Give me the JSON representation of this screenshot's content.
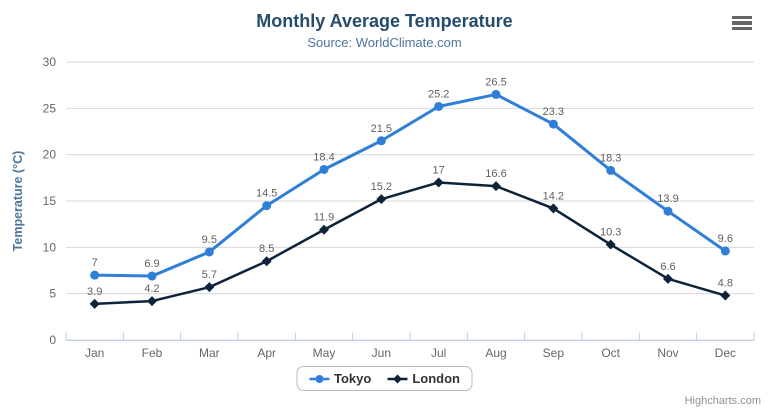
{
  "header": {
    "title": "Monthly Average Temperature",
    "subtitle": "Source: WorldClimate.com"
  },
  "credits": "Highcharts.com",
  "menu_icon": "hamburger-icon",
  "colors": {
    "background": "#ffffff",
    "title": "#274b6d",
    "subtitle": "#4d759e",
    "axis_title": "#4d759e",
    "axis_label": "#666666",
    "gridline": "#d8d8d8",
    "axis_line": "#c0d0e0",
    "data_label": "#606060",
    "legend_text": "#333333",
    "credit": "#909090",
    "menu": "#666666",
    "tokyo": "#2f7ed8",
    "london": "#0d233a"
  },
  "chart_data": {
    "type": "line",
    "title": "Monthly Average Temperature",
    "subtitle": "Source: WorldClimate.com",
    "categories": [
      "Jan",
      "Feb",
      "Mar",
      "Apr",
      "May",
      "Jun",
      "Jul",
      "Aug",
      "Sep",
      "Oct",
      "Nov",
      "Dec"
    ],
    "series": [
      {
        "name": "Tokyo",
        "color": "#2f7ed8",
        "marker": "circle",
        "values": [
          7,
          6.9,
          9.5,
          14.5,
          18.4,
          21.5,
          25.2,
          26.5,
          23.3,
          18.3,
          13.9,
          9.6
        ]
      },
      {
        "name": "London",
        "color": "#0d233a",
        "marker": "diamond",
        "values": [
          3.9,
          4.2,
          5.7,
          8.5,
          11.9,
          15.2,
          17,
          16.6,
          14.2,
          10.3,
          6.6,
          4.8
        ]
      }
    ],
    "xlabel": "",
    "ylabel": "Temperature (°C)",
    "ylim": [
      0,
      30
    ],
    "ytick_interval": 5,
    "yticks": [
      0,
      5,
      10,
      15,
      20,
      25,
      30
    ],
    "grid": true,
    "legend_position": "bottom-center",
    "data_labels": true
  }
}
